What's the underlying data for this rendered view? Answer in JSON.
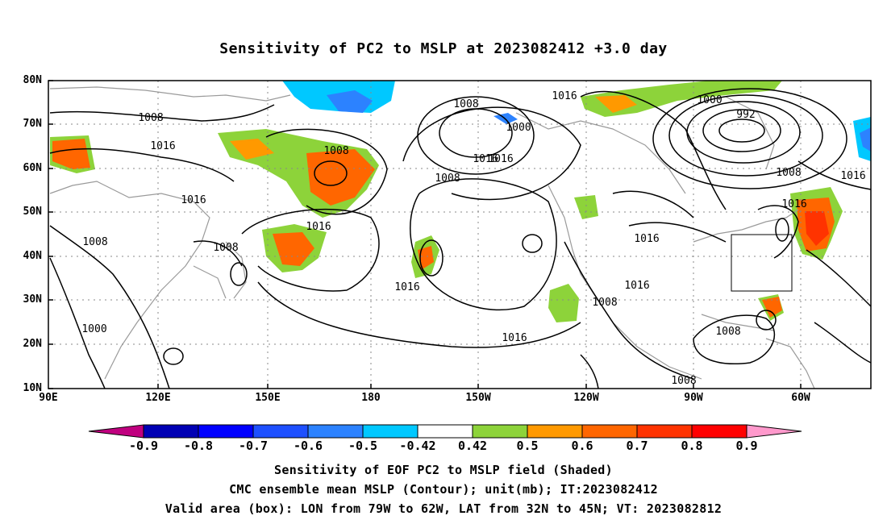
{
  "title": "Sensitivity of PC2 to MSLP at 2023082412 +3.0 day",
  "lat_labels": [
    "80N",
    "70N",
    "60N",
    "50N",
    "40N",
    "30N",
    "20N",
    "10N"
  ],
  "lon_labels": [
    "90E",
    "120E",
    "150E",
    "180",
    "150W",
    "120W",
    "90W",
    "60W"
  ],
  "contour_labels": [
    "1008",
    "1016",
    "1016",
    "1008",
    "1008",
    "1016",
    "1008",
    "1016",
    "1016",
    "1000",
    "1008",
    "1016",
    "1000",
    "1016",
    "1008",
    "1016",
    "1000",
    "992",
    "1008",
    "1016",
    "1016",
    "1016",
    "1016",
    "1008",
    "1008",
    "1008"
  ],
  "colorbar": {
    "ticks": [
      "-0.9",
      "-0.8",
      "-0.7",
      "-0.6",
      "-0.5",
      "-0.42",
      "0.42",
      "0.5",
      "0.6",
      "0.7",
      "0.8",
      "0.9"
    ],
    "colors": [
      "#c0007f",
      "#0000b4",
      "#0000ff",
      "#1e50ff",
      "#2c82ff",
      "#00c8ff",
      "#ffffff",
      "#8dd33a",
      "#ff9900",
      "#ff6600",
      "#ff3300",
      "#ff0000",
      "#ff99cc"
    ]
  },
  "footer": {
    "line1": "Sensitivity of EOF PC2 to MSLP field (Shaded)",
    "line2": "CMC ensemble mean MSLP (Contour); unit(mb); IT:2023082412",
    "line3": "Valid area (box): LON from 79W to 62W, LAT from 32N to 45N; VT: 2023082812"
  }
}
